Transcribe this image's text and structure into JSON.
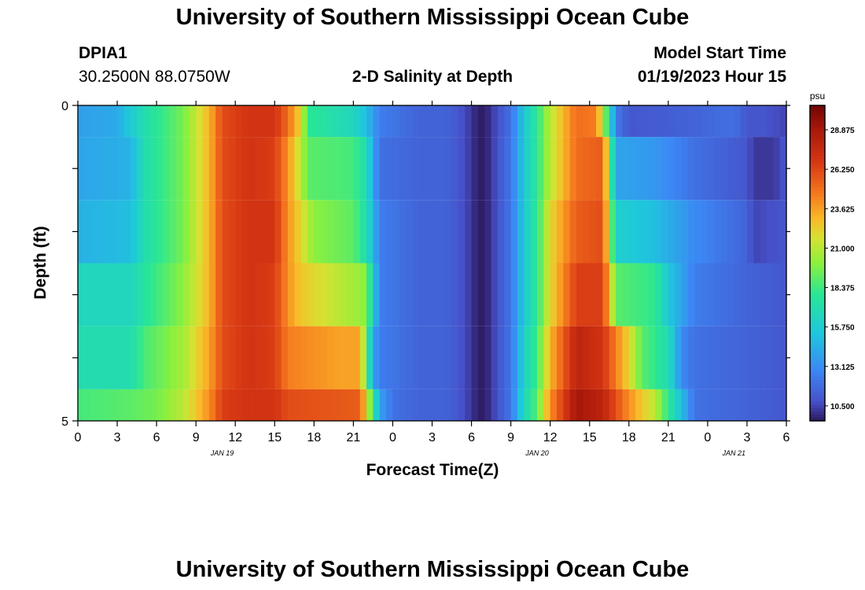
{
  "header": {
    "title": "University of Southern Mississippi Ocean Cube",
    "station_id": "DPIA1",
    "coordinates": "30.2500N  88.0750W",
    "plot_title": "2-D Salinity at Depth",
    "model_label": "Model Start Time",
    "model_time": "01/19/2023 Hour 15"
  },
  "footer": {
    "title": "University of Southern Mississippi Ocean Cube"
  },
  "chart_data": {
    "type": "heatmap",
    "title": "2-D Salinity at Depth",
    "xlabel": "Forecast Time(Z)",
    "ylabel": "Depth (ft)",
    "x_ticks": [
      "0",
      "3",
      "6",
      "9",
      "12",
      "15",
      "18",
      "21",
      "0",
      "3",
      "6",
      "9",
      "12",
      "15",
      "18",
      "21",
      "0",
      "3",
      "6"
    ],
    "date_labels": [
      {
        "label": "JAN 19",
        "at_hour": 11
      },
      {
        "label": "JAN 20",
        "at_hour": 35
      },
      {
        "label": "JAN 21",
        "at_hour": 50
      }
    ],
    "x_range_hours": [
      0,
      54
    ],
    "y_ticks": [
      "0",
      "5"
    ],
    "ylim": [
      0,
      5
    ],
    "colorbar": {
      "unit": "psu",
      "min": 9.5,
      "max": 30.5,
      "ticks": [
        "28.875",
        "26.250",
        "23.625",
        "21.000",
        "18.375",
        "15.750",
        "13.125",
        "10.500"
      ]
    },
    "depth_layers": [
      {
        "from_ft": 0.0,
        "to_ft": 0.5,
        "anchors": [
          [
            0,
            13.8
          ],
          [
            3,
            14.2
          ],
          [
            5,
            17
          ],
          [
            8,
            19.5
          ],
          [
            10,
            23
          ],
          [
            11,
            26
          ],
          [
            13,
            27
          ],
          [
            15,
            27
          ],
          [
            16,
            25
          ],
          [
            17,
            22
          ],
          [
            17.5,
            18
          ],
          [
            21,
            16.5
          ],
          [
            22,
            15
          ],
          [
            23,
            12.5
          ],
          [
            26,
            11.5
          ],
          [
            28,
            11.5
          ],
          [
            29,
            11
          ],
          [
            30,
            10.2
          ],
          [
            30.5,
            9.6
          ],
          [
            31,
            9.6
          ],
          [
            31.5,
            10.2
          ],
          [
            33,
            12
          ],
          [
            34,
            15.5
          ],
          [
            35,
            18
          ],
          [
            36,
            21
          ],
          [
            38,
            25
          ],
          [
            39.5,
            24.5
          ],
          [
            40,
            21
          ],
          [
            40.5,
            17
          ],
          [
            41,
            12.5
          ],
          [
            42,
            11
          ],
          [
            47,
            11.5
          ],
          [
            50,
            12
          ],
          [
            51,
            11
          ],
          [
            52,
            11
          ],
          [
            54,
            10.5
          ]
        ]
      },
      {
        "from_ft": 0.5,
        "to_ft": 1.5,
        "anchors": [
          [
            0,
            14
          ],
          [
            4,
            14.5
          ],
          [
            5,
            17
          ],
          [
            8,
            19.5
          ],
          [
            10,
            23
          ],
          [
            11,
            26
          ],
          [
            13,
            27
          ],
          [
            15,
            26.5
          ],
          [
            16,
            24
          ],
          [
            17,
            21
          ],
          [
            17.5,
            19
          ],
          [
            21,
            18.5
          ],
          [
            22,
            17
          ],
          [
            22.5,
            14
          ],
          [
            23,
            12
          ],
          [
            26,
            11.5
          ],
          [
            28,
            11.5
          ],
          [
            29,
            11
          ],
          [
            30,
            10.2
          ],
          [
            30.5,
            9.6
          ],
          [
            31,
            9.6
          ],
          [
            31.5,
            10.2
          ],
          [
            33,
            12.2
          ],
          [
            34,
            15.5
          ],
          [
            35,
            18
          ],
          [
            36,
            21
          ],
          [
            38,
            25
          ],
          [
            40,
            25.5
          ],
          [
            40.5,
            20
          ],
          [
            41,
            14
          ],
          [
            44,
            13.5
          ],
          [
            47,
            12
          ],
          [
            51,
            11
          ],
          [
            51.5,
            10.2
          ],
          [
            53,
            10.2
          ],
          [
            54,
            11
          ]
        ]
      },
      {
        "from_ft": 1.5,
        "to_ft": 2.5,
        "anchors": [
          [
            0,
            14.5
          ],
          [
            4,
            15
          ],
          [
            5,
            17
          ],
          [
            8,
            19.5
          ],
          [
            10,
            23
          ],
          [
            11,
            26
          ],
          [
            13,
            27
          ],
          [
            15,
            27
          ],
          [
            16,
            24
          ],
          [
            17,
            22
          ],
          [
            18,
            20
          ],
          [
            21,
            19
          ],
          [
            22,
            17
          ],
          [
            23,
            12.5
          ],
          [
            26,
            11.5
          ],
          [
            28,
            11.5
          ],
          [
            29,
            11
          ],
          [
            30,
            10.2
          ],
          [
            30.5,
            9.6
          ],
          [
            31,
            9.6
          ],
          [
            31.5,
            10.2
          ],
          [
            33,
            12.2
          ],
          [
            34,
            15.5
          ],
          [
            35,
            18
          ],
          [
            36,
            22
          ],
          [
            38,
            25.5
          ],
          [
            40,
            26
          ],
          [
            40.5,
            21
          ],
          [
            41,
            16
          ],
          [
            44,
            15
          ],
          [
            47,
            13
          ],
          [
            51,
            11.5
          ],
          [
            51.5,
            10.5
          ],
          [
            53,
            10.8
          ],
          [
            54,
            11
          ]
        ]
      },
      {
        "from_ft": 2.5,
        "to_ft": 3.5,
        "anchors": [
          [
            0,
            16.5
          ],
          [
            4,
            16.5
          ],
          [
            5,
            17.5
          ],
          [
            8,
            20
          ],
          [
            10,
            23
          ],
          [
            11,
            26
          ],
          [
            13,
            27
          ],
          [
            15,
            26.5
          ],
          [
            16,
            24
          ],
          [
            17,
            22.5
          ],
          [
            20,
            21
          ],
          [
            22,
            20
          ],
          [
            22.5,
            16
          ],
          [
            23,
            12.5
          ],
          [
            26,
            11.5
          ],
          [
            28,
            11.5
          ],
          [
            29,
            11
          ],
          [
            30,
            10.2
          ],
          [
            30.5,
            9.6
          ],
          [
            31,
            9.6
          ],
          [
            31.5,
            10.2
          ],
          [
            33,
            12.2
          ],
          [
            34,
            15.5
          ],
          [
            35,
            18
          ],
          [
            36,
            22
          ],
          [
            38,
            26.5
          ],
          [
            40,
            26.5
          ],
          [
            40.5,
            23
          ],
          [
            41,
            19
          ],
          [
            44,
            18
          ],
          [
            45,
            15.5
          ],
          [
            47,
            12.5
          ],
          [
            51,
            11.5
          ],
          [
            54,
            11
          ]
        ]
      },
      {
        "from_ft": 3.5,
        "to_ft": 4.5,
        "anchors": [
          [
            0,
            17
          ],
          [
            4,
            17
          ],
          [
            5,
            18.5
          ],
          [
            8,
            20.5
          ],
          [
            10,
            23.5
          ],
          [
            11,
            26
          ],
          [
            13,
            27
          ],
          [
            15,
            26.5
          ],
          [
            16,
            24.5
          ],
          [
            20,
            23.5
          ],
          [
            21.5,
            23.5
          ],
          [
            22,
            19
          ],
          [
            22.5,
            14
          ],
          [
            23,
            12.5
          ],
          [
            26,
            11.5
          ],
          [
            28,
            11.5
          ],
          [
            29,
            11
          ],
          [
            30,
            10.2
          ],
          [
            30.5,
            9.6
          ],
          [
            31,
            9.6
          ],
          [
            31.5,
            10.2
          ],
          [
            33,
            12.2
          ],
          [
            34,
            16
          ],
          [
            35,
            18.5
          ],
          [
            36,
            23
          ],
          [
            38,
            28
          ],
          [
            40,
            27
          ],
          [
            42,
            22
          ],
          [
            43,
            19
          ],
          [
            45,
            17
          ],
          [
            46,
            13
          ],
          [
            47,
            12
          ],
          [
            51,
            11.5
          ],
          [
            54,
            11
          ]
        ]
      },
      {
        "from_ft": 4.5,
        "to_ft": 5.0,
        "anchors": [
          [
            0,
            18.5
          ],
          [
            4,
            19
          ],
          [
            6,
            19.5
          ],
          [
            8,
            21
          ],
          [
            10,
            24
          ],
          [
            11,
            26.5
          ],
          [
            13,
            27
          ],
          [
            15,
            27
          ],
          [
            16,
            26
          ],
          [
            21.5,
            25.5
          ],
          [
            22,
            22
          ],
          [
            22.5,
            18
          ],
          [
            23,
            14
          ],
          [
            24,
            12
          ],
          [
            26,
            11.5
          ],
          [
            28,
            11.5
          ],
          [
            29,
            11
          ],
          [
            30,
            10.2
          ],
          [
            30.5,
            9.6
          ],
          [
            31,
            9.6
          ],
          [
            31.5,
            10.2
          ],
          [
            33,
            12.2
          ],
          [
            34,
            16.5
          ],
          [
            35,
            19
          ],
          [
            36,
            24
          ],
          [
            38,
            29
          ],
          [
            40,
            28
          ],
          [
            42,
            24
          ],
          [
            44,
            21
          ],
          [
            46,
            15
          ],
          [
            47,
            12
          ],
          [
            51,
            11.5
          ],
          [
            54,
            11
          ]
        ]
      }
    ]
  }
}
